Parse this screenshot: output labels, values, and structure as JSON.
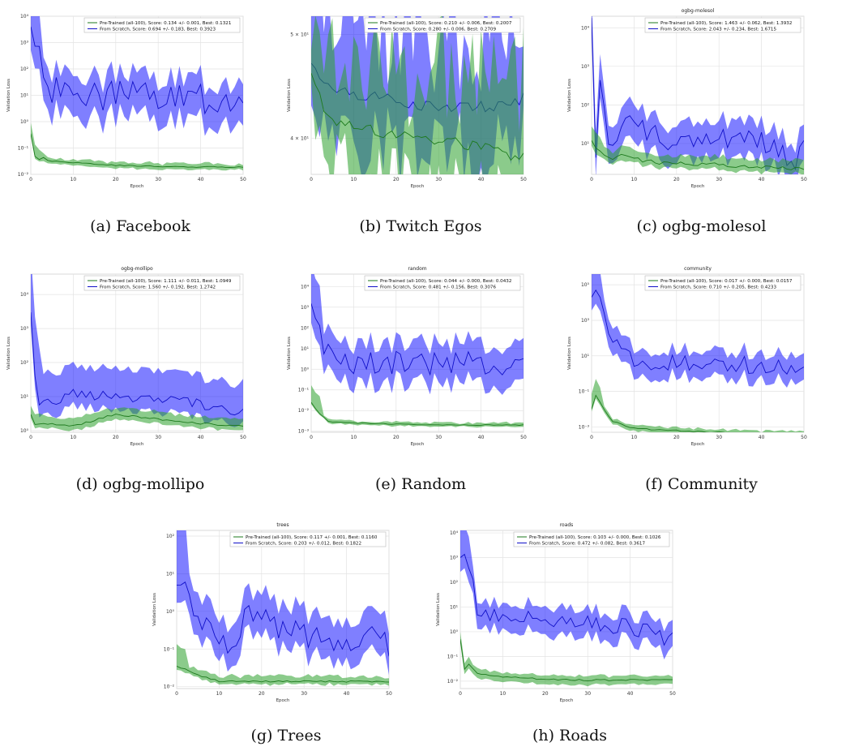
{
  "chart_data": [
    {
      "id": "a",
      "caption": "(a) Facebook",
      "title": "",
      "type": "line",
      "log": true,
      "xlim": [
        0,
        50
      ],
      "ylim_exp": [
        -2,
        4
      ],
      "ytick_exps": [
        -2,
        -1,
        0,
        1,
        2,
        3,
        4
      ],
      "xticks": [
        0,
        10,
        20,
        30,
        40,
        50
      ],
      "xlabel": "Epoch",
      "ylabel": "Validation Loss",
      "series": [
        {
          "name": "Pre-Trained (all-100), Score: 0.134 +/- 0.001,  Best: 0.1321",
          "color": "#2ca02c",
          "anchors": [
            [
              0,
              0.35
            ],
            [
              1,
              0.05
            ],
            [
              2,
              0.035
            ],
            [
              3,
              0.045
            ],
            [
              4,
              0.035
            ],
            [
              5,
              0.032
            ],
            [
              10,
              0.028
            ],
            [
              20,
              0.022
            ],
            [
              30,
              0.02
            ],
            [
              40,
              0.019
            ],
            [
              50,
              0.019
            ]
          ],
          "spread_lo": 0.85,
          "spread_hi": 1.15,
          "noise": 0.02,
          "early_up": 2.0
        },
        {
          "name": "From Scratch, Score: 0.694 +/- 0.183,  Best: 0.3923",
          "color": "#0000ff",
          "anchors": [
            [
              0,
              4000
            ],
            [
              1,
              1000
            ],
            [
              2,
              200
            ],
            [
              3,
              50
            ],
            [
              5,
              20
            ],
            [
              10,
              10
            ],
            [
              20,
              10
            ],
            [
              30,
              8
            ],
            [
              40,
              7
            ],
            [
              50,
              8
            ]
          ],
          "spread_lo": 0.15,
          "spread_hi": 4.5,
          "noise": 0.6,
          "early_up": 4.0
        }
      ]
    },
    {
      "id": "b",
      "caption": "(b) Twitch Egos",
      "title": "",
      "type": "line",
      "log": true,
      "xlim": [
        0,
        50
      ],
      "yrange": [
        37,
        52
      ],
      "yticks_custom": [
        {
          "v": 40,
          "label": "4 × 10¹"
        },
        {
          "v": 50,
          "label": "5 × 10¹"
        }
      ],
      "xticks": [
        0,
        10,
        20,
        30,
        40,
        50
      ],
      "xlabel": "Epoch",
      "ylabel": "Validation Loss",
      "series": [
        {
          "name": "Pre-Trained (all-100), Score: 0.210 +/- 0.006,  Best: 0.2007",
          "color": "#2ca02c",
          "anchors": [
            [
              0,
              46
            ],
            [
              3,
              42.5
            ],
            [
              5,
              41.5
            ],
            [
              10,
              41
            ],
            [
              20,
              40.3
            ],
            [
              30,
              39.8
            ],
            [
              40,
              39.2
            ],
            [
              45,
              38.6
            ],
            [
              50,
              38.3
            ]
          ],
          "spread_lo": 0.985,
          "spread_hi": 1.015,
          "noise": 0.006,
          "early_up": 1.03
        },
        {
          "name": "From Scratch, Score: 0.280 +/- 0.006,  Best: 0.2709",
          "color": "#0000ff",
          "anchors": [
            [
              0,
              47
            ],
            [
              2,
              45
            ],
            [
              5,
              44.5
            ],
            [
              10,
              44
            ],
            [
              20,
              43.3
            ],
            [
              30,
              42.7
            ],
            [
              40,
              42.8
            ],
            [
              50,
              43.5
            ]
          ],
          "spread_lo": 0.985,
          "spread_hi": 1.02,
          "noise": 0.006,
          "early_up": 1.05
        }
      ]
    },
    {
      "id": "c",
      "caption": "(c) ogbg-molesol",
      "title": "ogbg-molesol",
      "type": "line",
      "log": true,
      "xlim": [
        0,
        50
      ],
      "ylim_exp": [
        0.2,
        4.3
      ],
      "ytick_exps": [
        1,
        2,
        3,
        4
      ],
      "xticks": [
        0,
        10,
        20,
        30,
        40,
        50
      ],
      "xlabel": "Epoch",
      "ylabel": "Validation Loss",
      "series": [
        {
          "name": "Pre-Trained (all-100), Score: 1.463 +/- 0.062,  Best: 1.3932",
          "color": "#2ca02c",
          "anchors": [
            [
              0,
              12
            ],
            [
              2,
              6
            ],
            [
              4,
              4
            ],
            [
              8,
              5
            ],
            [
              12,
              3.5
            ],
            [
              20,
              3
            ],
            [
              30,
              2.8
            ],
            [
              40,
              2.4
            ],
            [
              50,
              2.1
            ]
          ],
          "spread_lo": 0.8,
          "spread_hi": 1.4,
          "noise": 0.05,
          "early_up": 1.4
        },
        {
          "name": "From Scratch, Score: 2.043 +/- 0.234,  Best: 1.6715",
          "color": "#0000ff",
          "anchors": [
            [
              0,
              18000
            ],
            [
              1,
              5
            ],
            [
              2,
              300
            ],
            [
              3,
              50
            ],
            [
              5,
              5
            ],
            [
              8,
              30
            ],
            [
              15,
              15
            ],
            [
              20,
              8
            ],
            [
              30,
              15
            ],
            [
              40,
              12
            ],
            [
              48,
              4
            ],
            [
              50,
              10
            ]
          ],
          "spread_lo": 0.35,
          "spread_hi": 2.5,
          "noise": 0.3,
          "early_up": 1.5
        }
      ]
    },
    {
      "id": "d",
      "caption": "(d) ogbg-mollipo",
      "title": "ogbg-mollipo",
      "type": "line",
      "log": true,
      "xlim": [
        0,
        50
      ],
      "ylim_exp": [
        -0.05,
        4.6
      ],
      "ytick_exps": [
        0,
        1,
        2,
        3,
        4
      ],
      "xticks": [
        0,
        10,
        20,
        30,
        40,
        50
      ],
      "xlabel": "Epoch",
      "ylabel": "Validation Loss",
      "series": [
        {
          "name": "Pre-Trained (all-100), Score: 1.111 +/- 0.011,  Best: 1.0949",
          "color": "#2ca02c",
          "anchors": [
            [
              0,
              3
            ],
            [
              1,
              1.5
            ],
            [
              5,
              1.6
            ],
            [
              10,
              1.4
            ],
            [
              15,
              2
            ],
            [
              20,
              3
            ],
            [
              30,
              2.2
            ],
            [
              40,
              1.6
            ],
            [
              50,
              1.4
            ]
          ],
          "spread_lo": 0.8,
          "spread_hi": 1.4,
          "noise": 0.03,
          "early_up": 1.2
        },
        {
          "name": "From Scratch, Score: 1.560 +/- 0.192,  Best: 1.2742",
          "color": "#0000ff",
          "anchors": [
            [
              0,
              3000
            ],
            [
              1,
              30
            ],
            [
              2,
              5
            ],
            [
              3,
              10
            ],
            [
              5,
              7
            ],
            [
              10,
              12
            ],
            [
              20,
              10
            ],
            [
              30,
              9
            ],
            [
              40,
              6
            ],
            [
              48,
              3
            ],
            [
              50,
              5
            ]
          ],
          "spread_lo": 0.45,
          "spread_hi": 6,
          "noise": 0.15,
          "early_up": 8
        }
      ]
    },
    {
      "id": "e",
      "caption": "(e) Random",
      "title": "random",
      "type": "line",
      "log": true,
      "xlim": [
        0,
        50
      ],
      "ylim_exp": [
        -3.05,
        4.6
      ],
      "ytick_exps": [
        -3,
        -2,
        -1,
        0,
        1,
        2,
        3,
        4
      ],
      "xticks": [
        0,
        10,
        20,
        30,
        40,
        50
      ],
      "xlabel": "Epoch",
      "ylabel": "Validation Loss",
      "series": [
        {
          "name": "Pre-Trained (all-100), Score: 0.044 +/- 0.000,  Best: 0.0432",
          "color": "#2ca02c",
          "anchors": [
            [
              0,
              0.025
            ],
            [
              2,
              0.007
            ],
            [
              4,
              0.003
            ],
            [
              10,
              0.0025
            ],
            [
              20,
              0.0022
            ],
            [
              30,
              0.002
            ],
            [
              40,
              0.002
            ],
            [
              50,
              0.002
            ]
          ],
          "spread_lo": 0.9,
          "spread_hi": 1.1,
          "noise": 0.02,
          "early_up": 5
        },
        {
          "name": "From Scratch, Score: 0.481 +/- 0.156,  Best: 0.3076",
          "color": "#0000ff",
          "anchors": [
            [
              0,
              1500
            ],
            [
              2,
              100
            ],
            [
              3,
              10
            ],
            [
              5,
              3
            ],
            [
              10,
              2
            ],
            [
              20,
              2
            ],
            [
              30,
              1.5
            ],
            [
              40,
              2
            ],
            [
              50,
              1
            ]
          ],
          "spread_lo": 0.12,
          "spread_hi": 8,
          "noise": 0.6,
          "early_up": 10
        }
      ]
    },
    {
      "id": "f",
      "caption": "(f) Community",
      "title": "community",
      "type": "line",
      "log": true,
      "xlim": [
        0,
        50
      ],
      "ylim_exp": [
        -3.3,
        5.6
      ],
      "ytick_exps": [
        -3,
        -1,
        1,
        3,
        5
      ],
      "xticks": [
        0,
        10,
        20,
        30,
        40,
        50
      ],
      "xlabel": "Epoch",
      "ylabel": "Validation Loss",
      "series": [
        {
          "name": "Pre-Trained (all-100), Score: 0.017 +/- 0.000,  Best: 0.0157",
          "color": "#2ca02c",
          "anchors": [
            [
              0,
              0.01
            ],
            [
              1,
              0.06
            ],
            [
              3,
              0.01
            ],
            [
              5,
              0.002
            ],
            [
              10,
              0.0008
            ],
            [
              20,
              0.0006
            ],
            [
              30,
              0.0005
            ],
            [
              40,
              0.0004
            ],
            [
              50,
              0.0004
            ]
          ],
          "spread_lo": 0.75,
          "spread_hi": 1.3,
          "noise": 0.05,
          "early_up": 5
        },
        {
          "name": "From Scratch, Score: 0.710 +/- 0.205,  Best: 0.4233",
          "color": "#0000ff",
          "anchors": [
            [
              0,
              20000
            ],
            [
              2,
              20000
            ],
            [
              4,
              300
            ],
            [
              6,
              30
            ],
            [
              10,
              5
            ],
            [
              20,
              5
            ],
            [
              30,
              3
            ],
            [
              40,
              3
            ],
            [
              50,
              2
            ]
          ],
          "spread_lo": 0.2,
          "spread_hi": 5,
          "noise": 0.5,
          "early_up": 5
        }
      ]
    },
    {
      "id": "g",
      "caption": "(g) Trees",
      "title": "trees",
      "type": "line",
      "log": true,
      "xlim": [
        0,
        50
      ],
      "ylim_exp": [
        -2.05,
        2.15
      ],
      "ytick_exps": [
        -2,
        -1,
        0,
        1,
        2
      ],
      "xticks": [
        0,
        10,
        20,
        30,
        40,
        50
      ],
      "xlabel": "Epoch",
      "ylabel": "Validation Loss",
      "series": [
        {
          "name": "Pre-Trained (all-100), Score: 0.117 +/- 0.001,  Best: 0.1160",
          "color": "#2ca02c",
          "anchors": [
            [
              0,
              0.035
            ],
            [
              2,
              0.03
            ],
            [
              5,
              0.02
            ],
            [
              8,
              0.016
            ],
            [
              10,
              0.014
            ],
            [
              20,
              0.0138
            ],
            [
              30,
              0.0138
            ],
            [
              40,
              0.0137
            ],
            [
              50,
              0.0137
            ]
          ],
          "spread_lo": 0.9,
          "spread_hi": 1.2,
          "noise": 0.02,
          "early_up": 2.5
        },
        {
          "name": "From Scratch, Score: 0.203 +/- 0.012,  Best: 0.1822",
          "color": "#0000ff",
          "anchors": [
            [
              0,
              5
            ],
            [
              2,
              7
            ],
            [
              4,
              0.6
            ],
            [
              8,
              0.3
            ],
            [
              12,
              0.1
            ],
            [
              17,
              0.8
            ],
            [
              20,
              0.8
            ],
            [
              25,
              0.3
            ],
            [
              30,
              0.25
            ],
            [
              40,
              0.15
            ],
            [
              45,
              0.3
            ],
            [
              50,
              0.1
            ]
          ],
          "spread_lo": 0.35,
          "spread_hi": 3.5,
          "noise": 0.35,
          "early_up": 12
        }
      ]
    },
    {
      "id": "h",
      "caption": "(h) Roads",
      "title": "roads",
      "type": "line",
      "log": true,
      "xlim": [
        0,
        50
      ],
      "ylim_exp": [
        -2.3,
        4.1
      ],
      "ytick_exps": [
        -2,
        -1,
        0,
        1,
        2,
        3,
        4
      ],
      "xticks": [
        0,
        10,
        20,
        30,
        40,
        50
      ],
      "xlabel": "Epoch",
      "ylabel": "Validation Loss",
      "series": [
        {
          "name": "Pre-Trained (all-100), Score: 0.103 +/- 0.000,  Best: 0.1026",
          "color": "#2ca02c",
          "anchors": [
            [
              0,
              0.5
            ],
            [
              1,
              0.03
            ],
            [
              2,
              0.05
            ],
            [
              4,
              0.02
            ],
            [
              10,
              0.015
            ],
            [
              20,
              0.012
            ],
            [
              30,
              0.011
            ],
            [
              40,
              0.011
            ],
            [
              50,
              0.011
            ]
          ],
          "spread_lo": 0.7,
          "spread_hi": 1.3,
          "noise": 0.03,
          "early_up": 1.3
        },
        {
          "name": "From Scratch, Score: 0.472 +/- 0.082,  Best: 0.3617",
          "color": "#0000ff",
          "anchors": [
            [
              0,
              1000
            ],
            [
              2,
              500
            ],
            [
              4,
              10
            ],
            [
              6,
              5
            ],
            [
              10,
              5
            ],
            [
              20,
              3
            ],
            [
              30,
              2
            ],
            [
              40,
              1.5
            ],
            [
              50,
              0.5
            ]
          ],
          "spread_lo": 0.3,
          "spread_hi": 3,
          "noise": 0.35,
          "early_up": 5
        }
      ]
    }
  ]
}
